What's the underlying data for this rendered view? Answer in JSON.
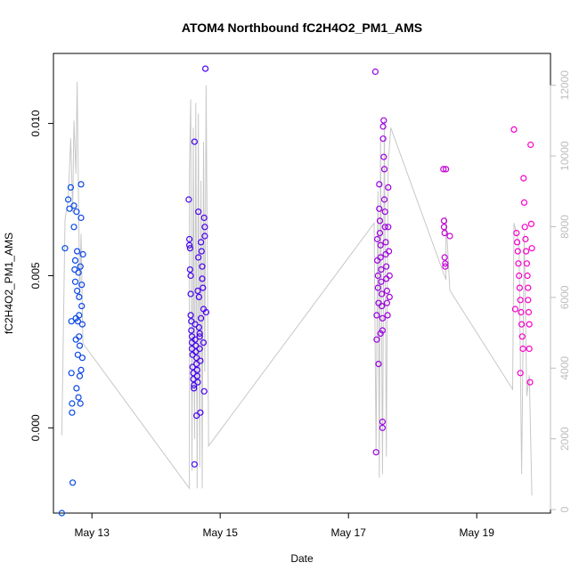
{
  "chart_data": {
    "type": "scatter",
    "title": "ATOM4 Northbound fC2H4O2_PM1_AMS",
    "xlabel": "Date",
    "ylabel": "fC2H4O2_PM1_AMS",
    "x_ticks": [
      "May 13",
      "May 15",
      "May 17",
      "May 19"
    ],
    "x_tick_days": [
      13,
      15,
      17,
      19
    ],
    "xlim_days": [
      12.4,
      20.15
    ],
    "ylim": [
      -0.0028,
      0.0123
    ],
    "y_ticks": [
      0.0,
      0.005,
      0.01
    ],
    "y_tick_labels": [
      "0.000",
      "0.005",
      "0.010"
    ],
    "y2_ticks": [
      0,
      2000,
      4000,
      6000,
      8000,
      10000,
      12000
    ],
    "y2_tick_labels": [
      "0",
      "2000",
      "4000",
      "6000",
      "8000",
      "10000",
      "12000"
    ],
    "y2lim": [
      -100,
      12900
    ],
    "grid": false,
    "legend": "none",
    "colors": {
      "axis": "#000000",
      "right_axis": "#bdbdbd",
      "line": "#c8c8c8",
      "point_start": "#0050e6",
      "point_mid": "#4a00f0",
      "point_mid2": "#9a00e0",
      "point_end": "#ff00c8"
    },
    "points": {
      "day13": [
        [
          12.53,
          -0.0028
        ],
        [
          12.58,
          0.0059
        ],
        [
          12.63,
          0.0075
        ],
        [
          12.65,
          0.0072
        ],
        [
          12.67,
          0.0079
        ],
        [
          12.68,
          0.0035
        ],
        [
          12.68,
          0.0018
        ],
        [
          12.69,
          0.0008
        ],
        [
          12.69,
          0.0005
        ],
        [
          12.7,
          -0.0018
        ],
        [
          12.72,
          0.0073
        ],
        [
          12.72,
          0.0066
        ],
        [
          12.73,
          0.0052
        ],
        [
          12.74,
          0.0055
        ],
        [
          12.74,
          0.0048
        ],
        [
          12.75,
          0.0036
        ],
        [
          12.75,
          0.0029
        ],
        [
          12.76,
          0.0071
        ],
        [
          12.77,
          0.0058
        ],
        [
          12.77,
          0.0045
        ],
        [
          12.78,
          0.0035
        ],
        [
          12.78,
          0.0024
        ],
        [
          12.79,
          0.001
        ],
        [
          12.79,
          0.0051
        ],
        [
          12.8,
          0.0043
        ],
        [
          12.8,
          0.0037
        ],
        [
          12.81,
          0.0027
        ],
        [
          12.81,
          0.0017
        ],
        [
          12.82,
          0.0008
        ],
        [
          12.82,
          0.0053
        ],
        [
          12.83,
          0.0069
        ],
        [
          12.83,
          0.008
        ],
        [
          12.84,
          0.0047
        ],
        [
          12.84,
          0.004
        ],
        [
          12.85,
          0.0034
        ],
        [
          12.85,
          0.0023
        ],
        [
          12.86,
          0.0057
        ],
        [
          12.8,
          0.003
        ],
        [
          12.76,
          0.0013
        ],
        [
          12.83,
          0.0019
        ]
      ],
      "day15": [
        [
          14.51,
          0.0075
        ],
        [
          14.52,
          0.0062
        ],
        [
          14.52,
          0.006
        ],
        [
          14.53,
          0.0059
        ],
        [
          14.53,
          0.0052
        ],
        [
          14.54,
          0.005
        ],
        [
          14.54,
          0.0044
        ],
        [
          14.54,
          0.0037
        ],
        [
          14.55,
          0.0035
        ],
        [
          14.55,
          0.0032
        ],
        [
          14.56,
          0.003
        ],
        [
          14.56,
          0.0028
        ],
        [
          14.56,
          0.0026
        ],
        [
          14.57,
          0.0024
        ],
        [
          14.57,
          0.002
        ],
        [
          14.58,
          0.0018
        ],
        [
          14.58,
          0.0016
        ],
        [
          14.59,
          0.0014
        ],
        [
          14.59,
          0.0013
        ],
        [
          14.6,
          0.0094
        ],
        [
          14.6,
          -0.0012
        ],
        [
          14.61,
          0.0034
        ],
        [
          14.61,
          0.0029
        ],
        [
          14.62,
          0.0027
        ],
        [
          14.62,
          0.0025
        ],
        [
          14.63,
          0.0023
        ],
        [
          14.63,
          0.0021
        ],
        [
          14.64,
          0.0019
        ],
        [
          14.64,
          0.0017
        ],
        [
          14.65,
          0.0015
        ],
        [
          14.65,
          0.0045
        ],
        [
          14.66,
          0.0071
        ],
        [
          14.66,
          0.0056
        ],
        [
          14.67,
          0.0043
        ],
        [
          14.67,
          0.0033
        ],
        [
          14.68,
          0.0031
        ],
        [
          14.68,
          0.0026
        ],
        [
          14.69,
          0.0022
        ],
        [
          14.69,
          0.0005
        ],
        [
          14.7,
          0.0061
        ],
        [
          14.71,
          0.0058
        ],
        [
          14.72,
          0.0053
        ],
        [
          14.72,
          0.0049
        ],
        [
          14.73,
          0.0046
        ],
        [
          14.74,
          0.0039
        ],
        [
          14.74,
          0.0028
        ],
        [
          14.75,
          0.0012
        ],
        [
          14.75,
          0.0069
        ],
        [
          14.76,
          0.0066
        ],
        [
          14.76,
          0.0063
        ],
        [
          14.77,
          0.0118
        ],
        [
          14.78,
          0.0038
        ],
        [
          14.63,
          0.0004
        ],
        [
          14.68,
          0.003
        ],
        [
          14.7,
          0.0036
        ]
      ],
      "day17": [
        [
          17.42,
          0.0117
        ],
        [
          17.43,
          -0.0008
        ],
        [
          17.44,
          0.0037
        ],
        [
          17.44,
          0.0029
        ],
        [
          17.45,
          0.0062
        ],
        [
          17.45,
          0.0055
        ],
        [
          17.46,
          0.005
        ],
        [
          17.46,
          0.0046
        ],
        [
          17.47,
          0.0041
        ],
        [
          17.47,
          0.0021
        ],
        [
          17.48,
          0.008
        ],
        [
          17.48,
          0.0072
        ],
        [
          17.49,
          0.0068
        ],
        [
          17.49,
          0.0064
        ],
        [
          17.5,
          0.006
        ],
        [
          17.5,
          0.0056
        ],
        [
          17.51,
          0.0052
        ],
        [
          17.51,
          0.0048
        ],
        [
          17.52,
          0.0044
        ],
        [
          17.52,
          0.004
        ],
        [
          17.53,
          0.0036
        ],
        [
          17.53,
          0.0032
        ],
        [
          17.54,
          0.0099
        ],
        [
          17.54,
          0.0095
        ],
        [
          17.55,
          0.0101
        ],
        [
          17.55,
          0.0089
        ],
        [
          17.56,
          0.0085
        ],
        [
          17.56,
          0.0075
        ],
        [
          17.57,
          0.0071
        ],
        [
          17.57,
          0.0066
        ],
        [
          17.58,
          0.0061
        ],
        [
          17.58,
          0.0057
        ],
        [
          17.59,
          0.0053
        ],
        [
          17.59,
          0.0049
        ],
        [
          17.6,
          0.0045
        ],
        [
          17.6,
          0.0041
        ],
        [
          17.61,
          0.0037
        ],
        [
          17.62,
          0.0079
        ],
        [
          17.62,
          0.0066
        ],
        [
          17.63,
          0.0058
        ],
        [
          17.64,
          0.005
        ],
        [
          17.64,
          0.0043
        ],
        [
          17.53,
          0.0002
        ],
        [
          17.53,
          0.0
        ],
        [
          17.5,
          0.0031
        ]
      ],
      "day18": [
        [
          18.48,
          0.0085
        ],
        [
          18.49,
          0.0068
        ],
        [
          18.49,
          0.0066
        ],
        [
          18.5,
          0.0064
        ],
        [
          18.5,
          0.0056
        ],
        [
          18.51,
          0.0054
        ],
        [
          18.51,
          0.0053
        ],
        [
          18.52,
          0.0085
        ],
        [
          18.58,
          0.0063
        ]
      ],
      "day19": [
        [
          19.58,
          0.0098
        ],
        [
          19.6,
          0.0039
        ],
        [
          19.62,
          0.0064
        ],
        [
          19.63,
          0.0061
        ],
        [
          19.64,
          0.0058
        ],
        [
          19.65,
          0.0054
        ],
        [
          19.66,
          0.005
        ],
        [
          19.67,
          0.0046
        ],
        [
          19.68,
          0.0042
        ],
        [
          19.68,
          0.0018
        ],
        [
          19.69,
          0.0038
        ],
        [
          19.7,
          0.0034
        ],
        [
          19.71,
          0.003
        ],
        [
          19.72,
          0.0026
        ],
        [
          19.73,
          0.0082
        ],
        [
          19.74,
          0.0074
        ],
        [
          19.75,
          0.0066
        ],
        [
          19.76,
          0.0062
        ],
        [
          19.77,
          0.0058
        ],
        [
          19.78,
          0.0054
        ],
        [
          19.79,
          0.005
        ],
        [
          19.8,
          0.0046
        ],
        [
          19.8,
          0.0042
        ],
        [
          19.81,
          0.0038
        ],
        [
          19.82,
          0.0034
        ],
        [
          19.82,
          0.0026
        ],
        [
          19.83,
          0.0015
        ],
        [
          19.84,
          0.0093
        ],
        [
          19.85,
          0.0067
        ],
        [
          19.86,
          0.0059
        ]
      ]
    },
    "line_y2": [
      [
        12.53,
        2100
      ],
      [
        12.58,
        8200
      ],
      [
        12.63,
        8800
      ],
      [
        12.67,
        10500
      ],
      [
        12.7,
        8400
      ],
      [
        12.72,
        11000
      ],
      [
        12.75,
        9500
      ],
      [
        12.77,
        12100
      ],
      [
        12.81,
        6000
      ],
      [
        12.83,
        7800
      ],
      [
        12.86,
        4700
      ],
      [
        14.52,
        600
      ],
      [
        14.52,
        9500
      ],
      [
        14.54,
        11600
      ],
      [
        14.56,
        1100
      ],
      [
        14.58,
        10800
      ],
      [
        14.6,
        2000
      ],
      [
        14.62,
        11500
      ],
      [
        14.64,
        600
      ],
      [
        14.66,
        11200
      ],
      [
        14.68,
        1200
      ],
      [
        14.7,
        9300
      ],
      [
        14.72,
        600
      ],
      [
        14.74,
        10400
      ],
      [
        14.76,
        3900
      ],
      [
        14.78,
        12000
      ],
      [
        14.82,
        1800
      ],
      [
        17.4,
        8100
      ],
      [
        17.43,
        1600
      ],
      [
        17.46,
        9000
      ],
      [
        17.48,
        900
      ],
      [
        17.5,
        10500
      ],
      [
        17.53,
        1000
      ],
      [
        17.56,
        11000
      ],
      [
        17.59,
        1500
      ],
      [
        17.62,
        9800
      ],
      [
        17.66,
        10800
      ],
      [
        18.52,
        6500
      ],
      [
        18.52,
        8300
      ],
      [
        18.58,
        6200
      ],
      [
        19.56,
        3400
      ],
      [
        19.58,
        8100
      ],
      [
        19.66,
        7500
      ],
      [
        19.7,
        1000
      ],
      [
        19.74,
        7800
      ],
      [
        19.78,
        3200
      ],
      [
        19.82,
        3800
      ],
      [
        19.86,
        400
      ]
    ]
  }
}
